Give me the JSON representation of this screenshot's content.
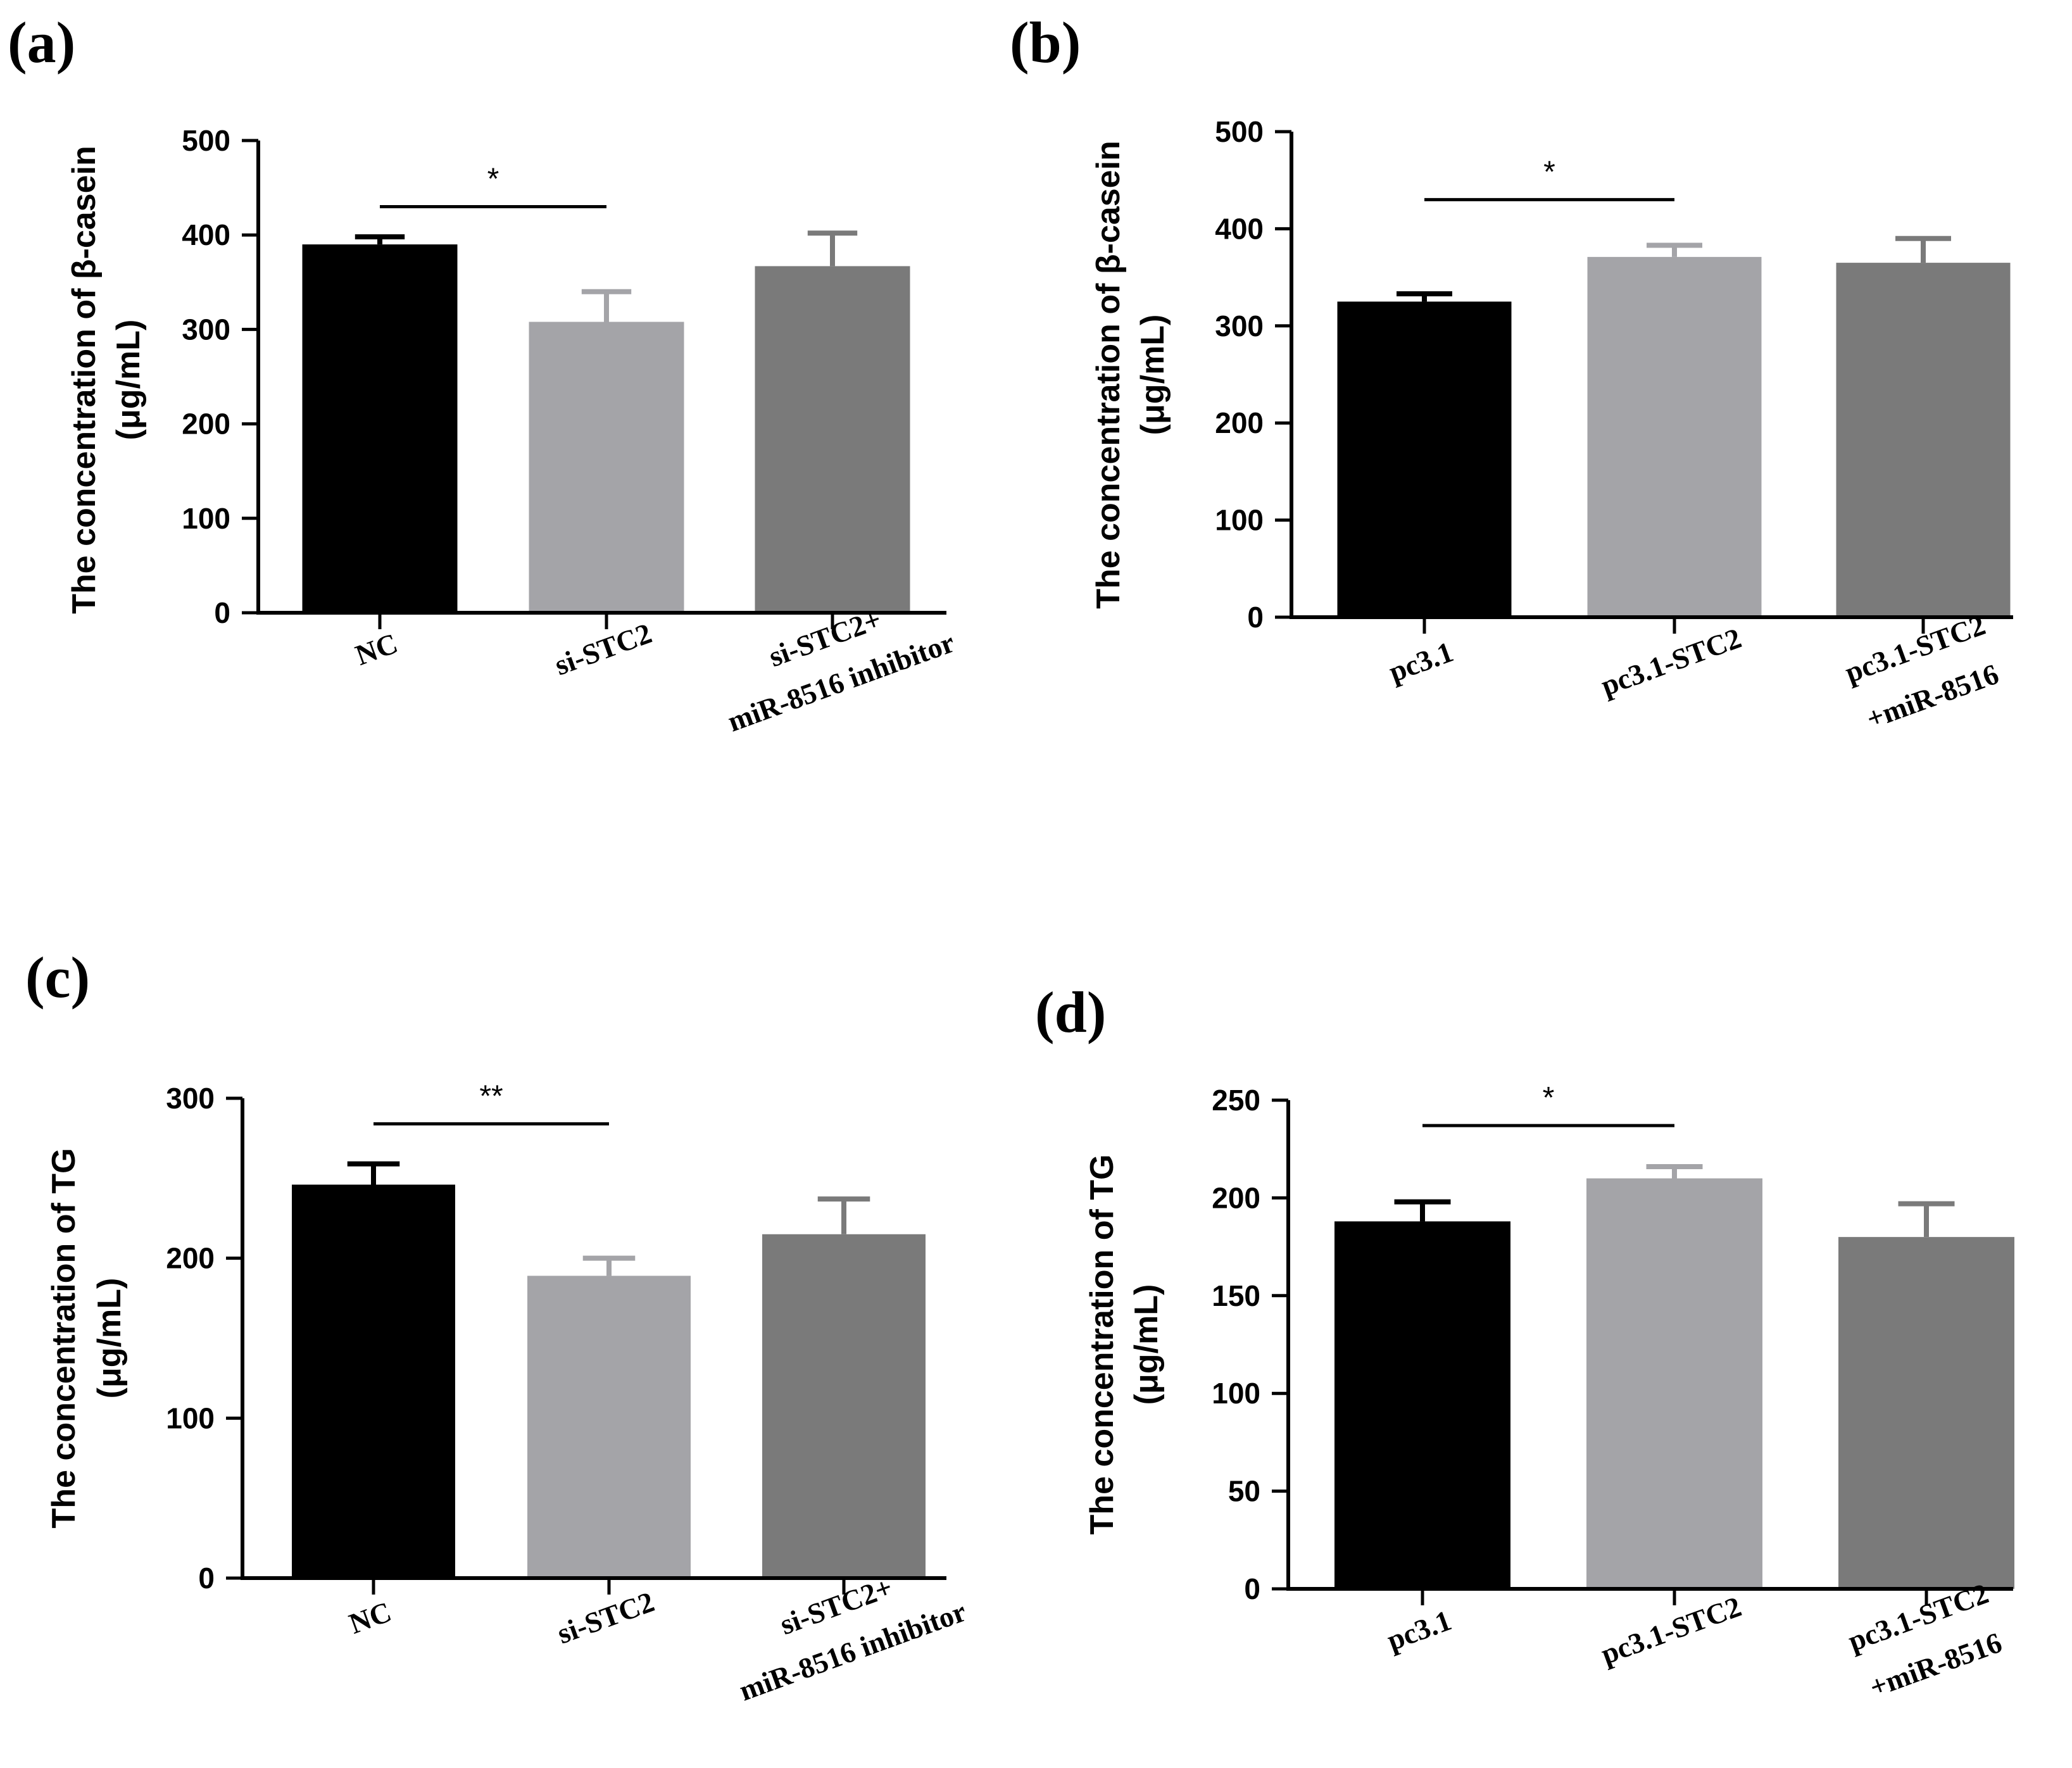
{
  "chart_data": [
    {
      "panel": "(a)",
      "type": "bar",
      "ylabel_line1": "The concentration of β-casein",
      "ylabel_line2": "(μg/mL)",
      "ylim": [
        0,
        500
      ],
      "yticks": [
        0,
        100,
        200,
        300,
        400,
        500
      ],
      "categories": [
        [
          "NC"
        ],
        [
          "si-STC2"
        ],
        [
          "si-STC2+",
          "miR-8516 inhibitor"
        ]
      ],
      "values": [
        390,
        308,
        367
      ],
      "errors": [
        8,
        32,
        35
      ],
      "colors": [
        "#000000",
        "#a4a4a8",
        "#7a7a7a"
      ],
      "significance": {
        "from": 0,
        "to": 1,
        "y": 430,
        "label": "*"
      }
    },
    {
      "panel": "(b)",
      "type": "bar",
      "ylabel_line1": "The concentration of β-casein",
      "ylabel_line2": "(μg/mL)",
      "ylim": [
        0,
        500
      ],
      "yticks": [
        0,
        100,
        200,
        300,
        400,
        500
      ],
      "categories": [
        [
          "pc3.1"
        ],
        [
          "pc3.1-STC2"
        ],
        [
          "pc3.1-STC2",
          "+miR-8516"
        ]
      ],
      "values": [
        325,
        371,
        365
      ],
      "errors": [
        8,
        12,
        25
      ],
      "colors": [
        "#000000",
        "#a4a4a8",
        "#7a7a7a"
      ],
      "significance": {
        "from": 0,
        "to": 1,
        "y": 430,
        "label": "*"
      }
    },
    {
      "panel": "(c)",
      "type": "bar",
      "ylabel_line1": "The concentration of TG",
      "ylabel_line2": "(μg/mL)",
      "ylim": [
        0,
        300
      ],
      "yticks": [
        0,
        100,
        200,
        300
      ],
      "categories": [
        [
          "NC"
        ],
        [
          "si-STC2"
        ],
        [
          "si-STC2+",
          "miR-8516 inhibitor"
        ]
      ],
      "values": [
        246,
        189,
        215
      ],
      "errors": [
        13,
        11,
        22
      ],
      "colors": [
        "#000000",
        "#a4a4a8",
        "#7a7a7a"
      ],
      "significance": {
        "from": 0,
        "to": 1,
        "y": 284,
        "label": "**"
      }
    },
    {
      "panel": "(d)",
      "type": "bar",
      "ylabel_line1": "The concentration of TG",
      "ylabel_line2": "(μg/mL)",
      "ylim": [
        0,
        250
      ],
      "yticks": [
        0,
        50,
        100,
        150,
        200,
        250
      ],
      "categories": [
        [
          "pc3.1"
        ],
        [
          "pc3.1-STC2"
        ],
        [
          "pc3.1-STC2",
          "+miR-8516"
        ]
      ],
      "values": [
        188,
        210,
        180
      ],
      "errors": [
        10,
        6,
        17
      ],
      "colors": [
        "#000000",
        "#a4a4a8",
        "#7a7a7a"
      ],
      "significance": {
        "from": 0,
        "to": 1,
        "y": 237,
        "label": "*"
      }
    }
  ]
}
